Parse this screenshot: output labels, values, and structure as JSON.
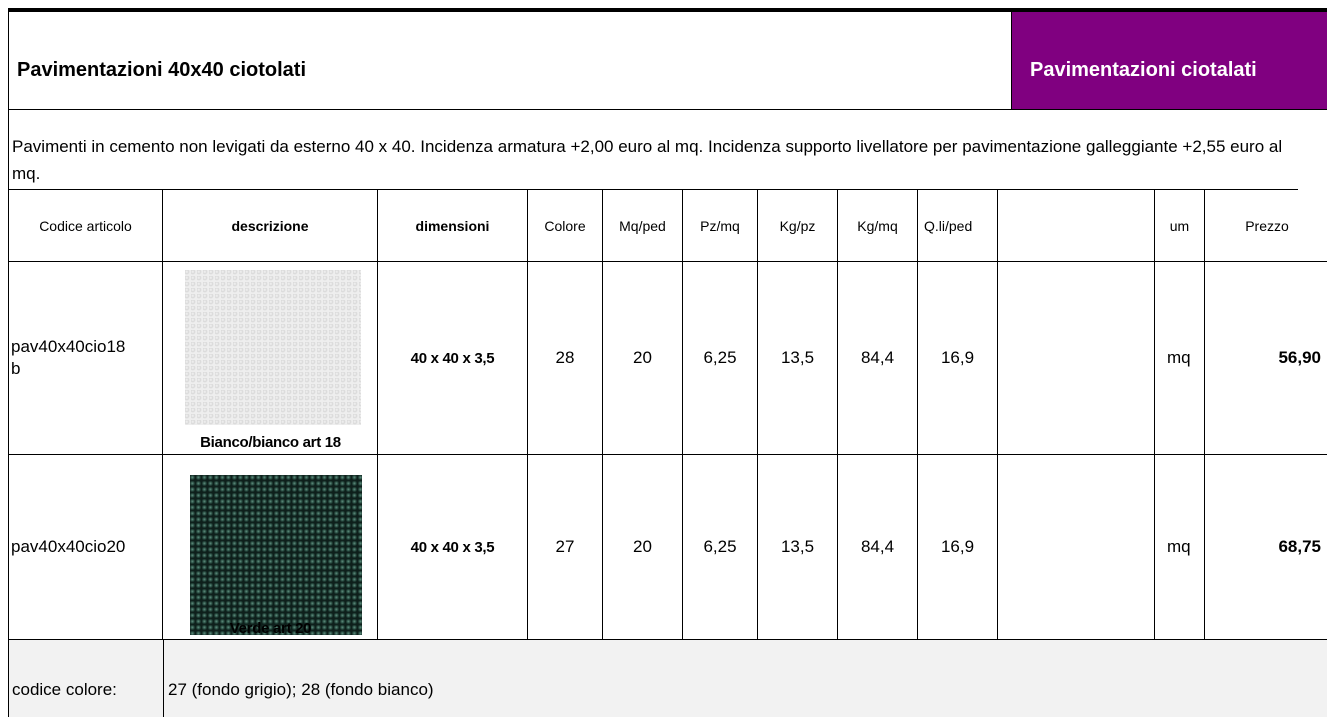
{
  "header": {
    "title": "Pavimentazioni 40x40 ciotolati",
    "badge": "Pavimentazioni ciotalati"
  },
  "description": "Pavimenti in cemento non levigati da esterno 40 x 40. Incidenza armatura +2,00 euro al mq. Incidenza supporto livellatore per pavimentazione galleggiante +2,55 euro al mq.",
  "table": {
    "columns": {
      "code": "Codice articolo",
      "description": "descrizione",
      "dimensions": "dimensioni",
      "colore": "Colore",
      "mq_ped": "Mq/ped",
      "pz_mq": "Pz/mq",
      "kg_pz": "Kg/pz",
      "kg_mq": "Kg/mq",
      "q_li_ped": "Q.li/ped",
      "um": "um",
      "prezzo": "Prezzo"
    },
    "rows": [
      {
        "code": "pav40x40cio18b",
        "description": "Bianco/bianco art 18",
        "dimensions": "40 x 40 x 3,5",
        "colore": "28",
        "mq_ped": "20",
        "pz_mq": "6,25",
        "kg_pz": "13,5",
        "kg_mq": "84,4",
        "q_li_ped": "16,9",
        "um": "mq",
        "prezzo": "56,90"
      },
      {
        "code": "pav40x40cio20",
        "description": "Verde art 20",
        "dimensions": "40 x 40 x 3,5",
        "colore": "27",
        "mq_ped": "20",
        "pz_mq": "6,25",
        "kg_pz": "13,5",
        "kg_mq": "84,4",
        "q_li_ped": "16,9",
        "um": "mq",
        "prezzo": "68,75"
      }
    ]
  },
  "footer": {
    "label": "codice colore:",
    "text": "27 (fondo grigio); 28 (fondo bianco)"
  }
}
